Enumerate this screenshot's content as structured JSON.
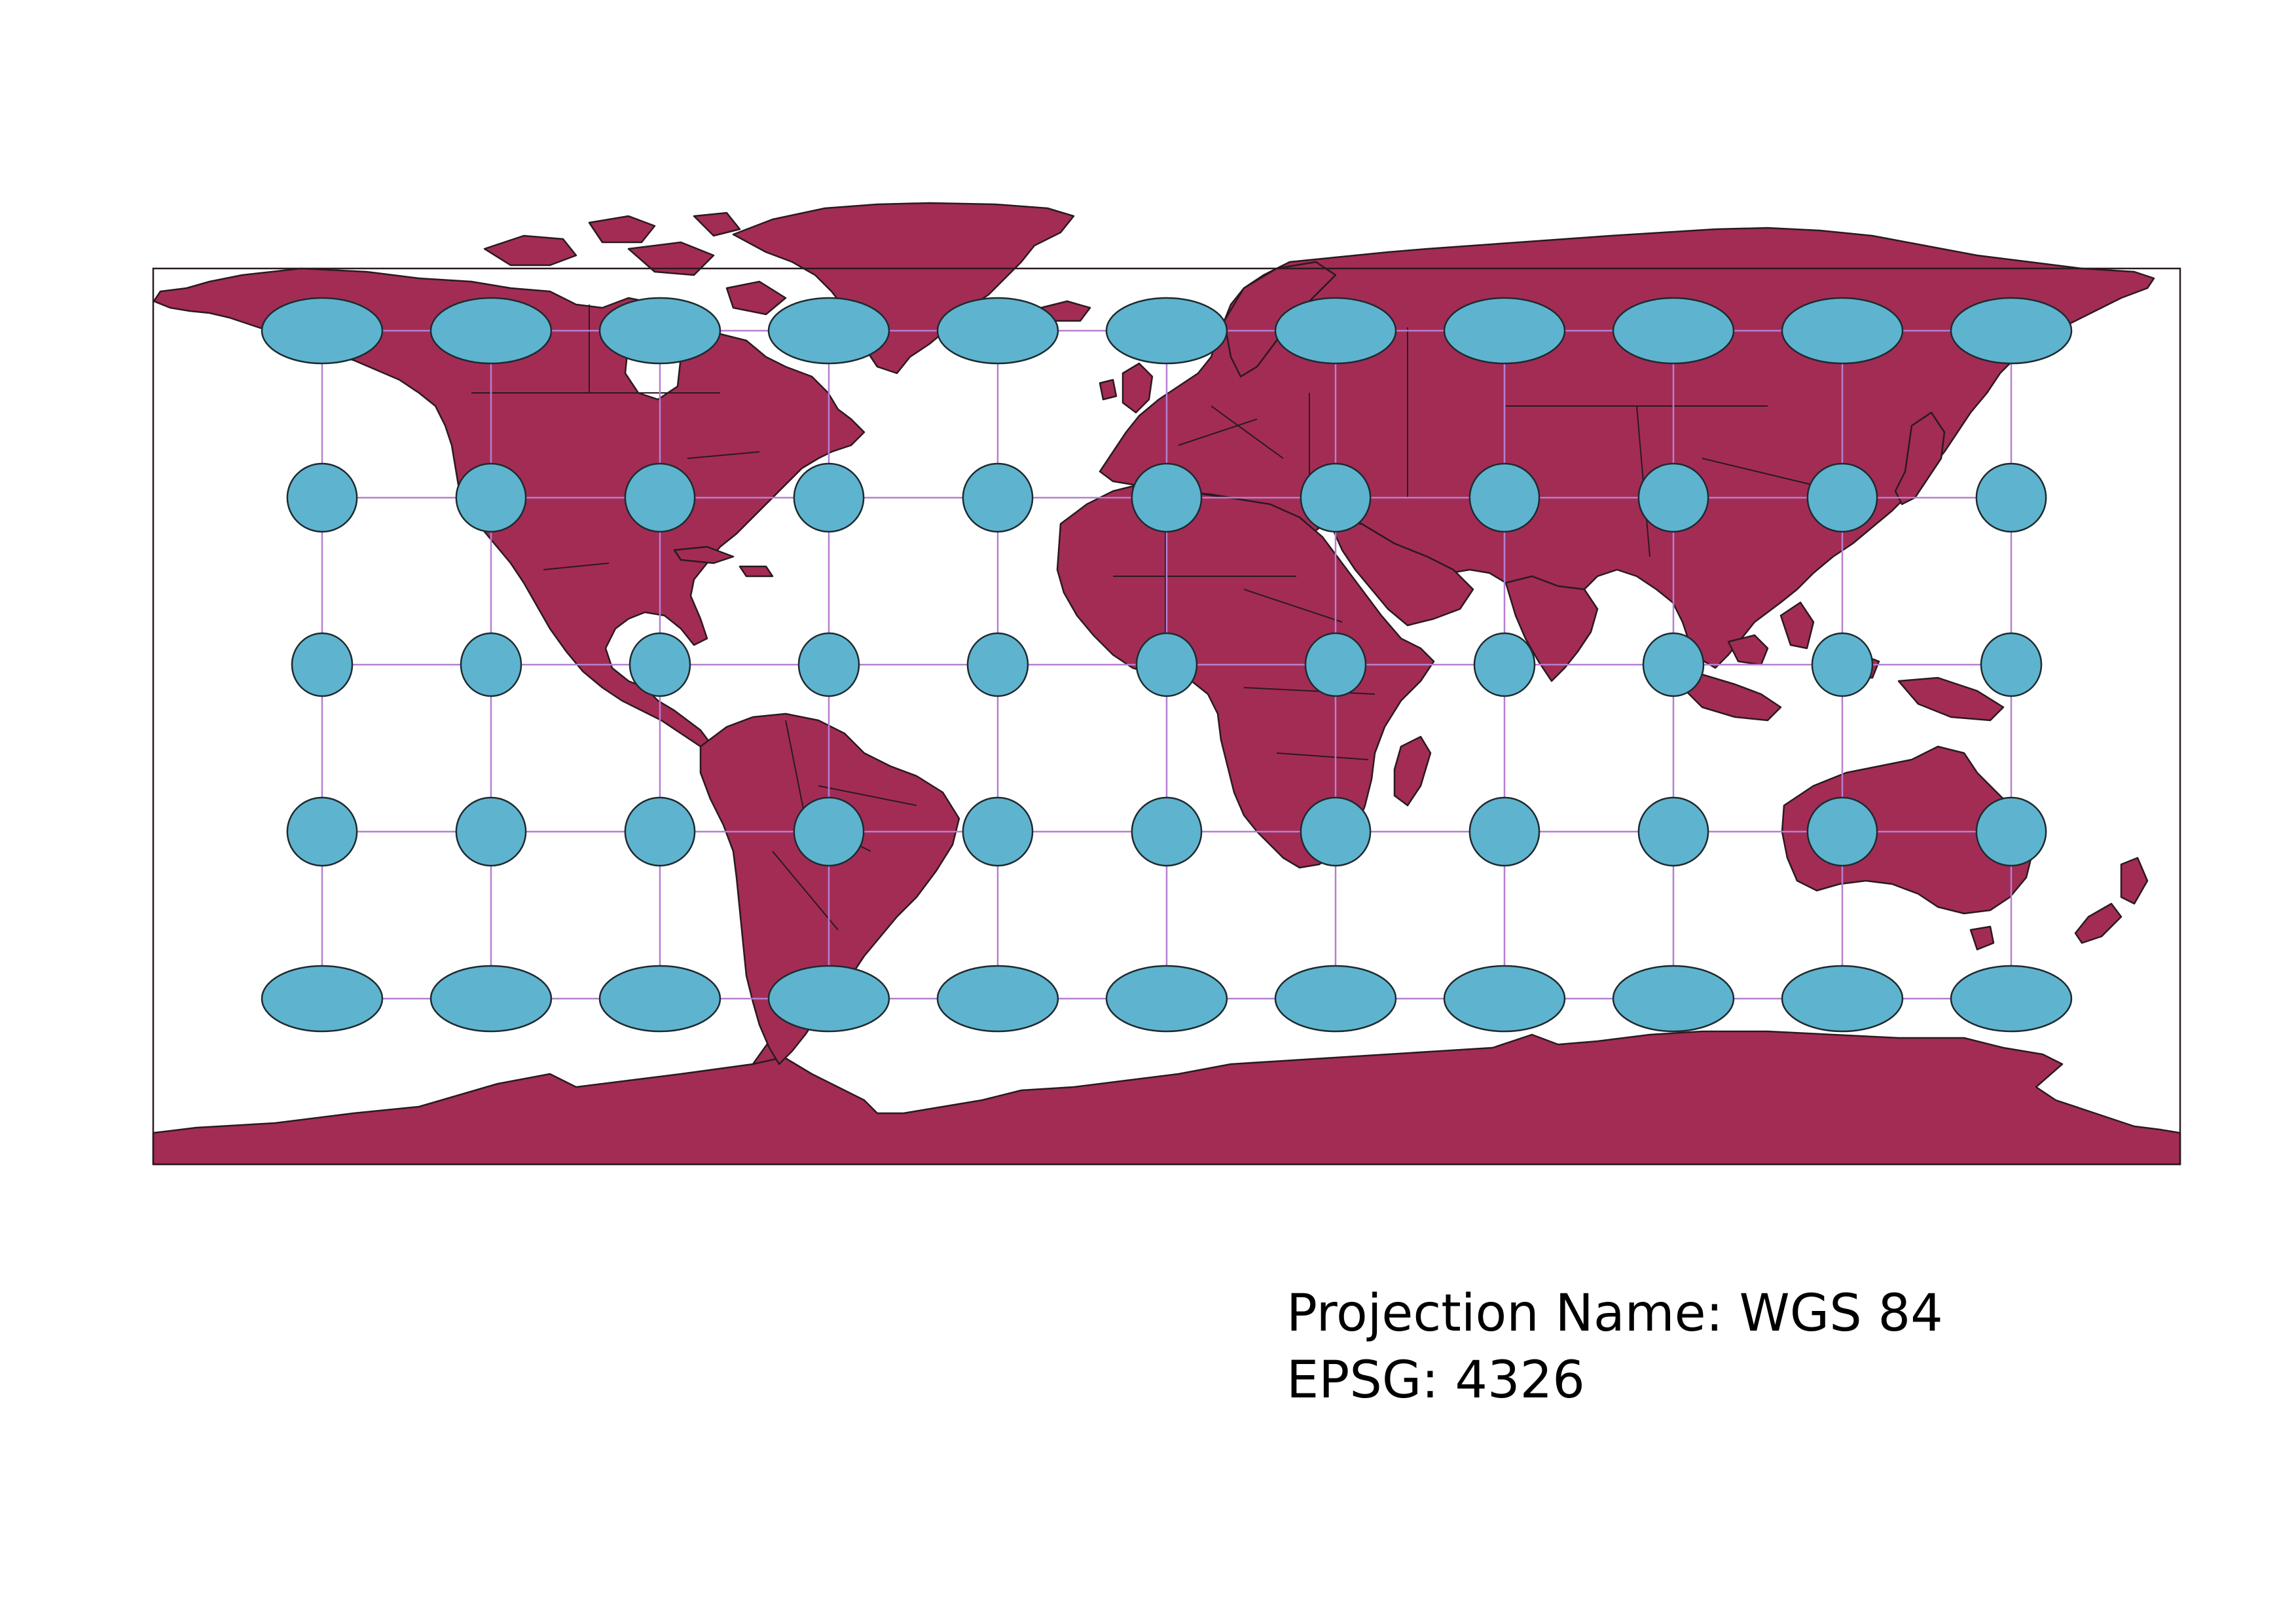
{
  "projection": {
    "name_line": "Projection Name: WGS 84",
    "epsg_line": "EPSG: 4326"
  },
  "colors": {
    "land": "#a32c55",
    "indicatrix": "#5eb4ce",
    "graticule": "#b77fd0",
    "background": "#ffffff"
  },
  "tissot": {
    "longitudes": [
      -150,
      -120,
      -90,
      -60,
      -30,
      0,
      30,
      60,
      90,
      120,
      150
    ],
    "latitudes": [
      60,
      30,
      0,
      -30,
      -60
    ]
  }
}
